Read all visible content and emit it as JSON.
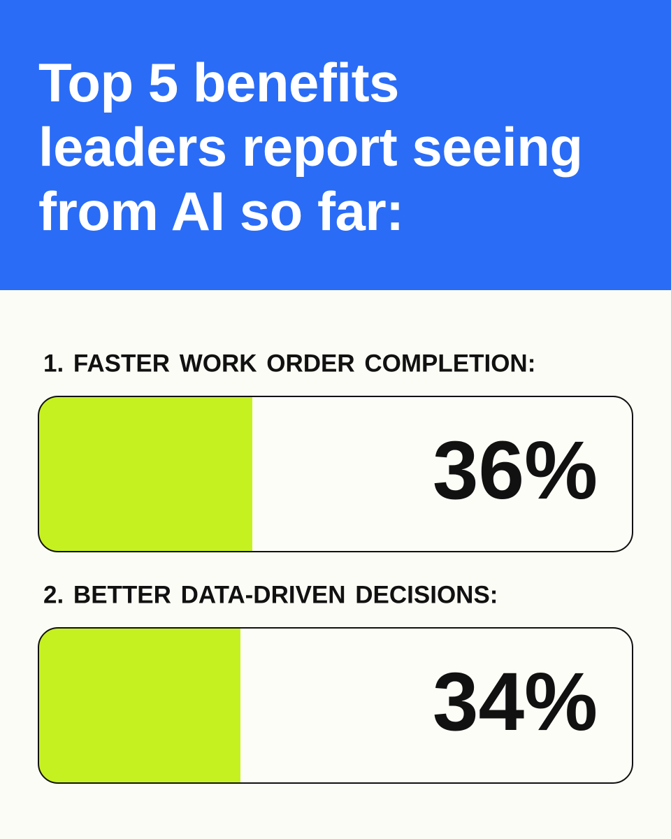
{
  "chart_data": {
    "type": "bar",
    "orientation": "horizontal",
    "title": "Top 5 benefits leaders report seeing from AI so far:",
    "categories": [
      "1. FASTER WORK ORDER COMPLETION:",
      "2. BETTER DATA-DRIVEN DECISIONS:"
    ],
    "values": [
      36,
      34
    ],
    "value_labels": [
      "36%",
      "34%"
    ],
    "color": "#c6f121",
    "xlim": [
      0,
      100
    ]
  }
}
